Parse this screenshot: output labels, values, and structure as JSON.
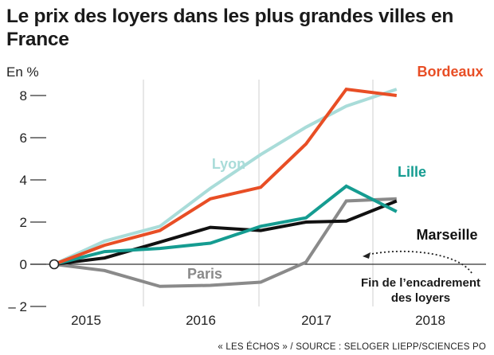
{
  "title": "Le prix des loyers dans les plus grandes villes en France",
  "source": "« LES ÉCHOS » / SOURCE : SELOGER LIEPP/SCIENCES PO",
  "chart_data": {
    "type": "line",
    "title": "Le prix des loyers dans les plus grandes villes en France",
    "ylabel": "En %",
    "xlabel": "",
    "ylim": [
      -2,
      8
    ],
    "y_ticks": [
      8,
      6,
      4,
      2,
      0,
      -2
    ],
    "y_tick_labels": [
      "8",
      "6",
      "4",
      "2",
      "0",
      "– 2"
    ],
    "xlim": [
      2014.7,
      2018.75
    ],
    "x_tick_labels": [
      "2015",
      "2016",
      "2017",
      "2018"
    ],
    "x_tick_values": [
      2015.15,
      2016.15,
      2017.15,
      2018.15
    ],
    "grid": "vertical",
    "origin_marker": [
      2014.7,
      0
    ],
    "series": [
      {
        "name": "Bordeaux",
        "color": "#e84e25",
        "x": [
          2014.7,
          2015.2,
          2015.75,
          2016.25,
          2016.75,
          2017.2,
          2017.6,
          2018.1
        ],
        "y": [
          0,
          0.9,
          1.6,
          3.1,
          3.65,
          5.7,
          8.3,
          8.0
        ]
      },
      {
        "name": "Lyon",
        "color": "#a9dcd9",
        "x": [
          2014.7,
          2015.2,
          2015.75,
          2016.25,
          2016.75,
          2017.2,
          2017.6,
          2018.1
        ],
        "y": [
          0,
          1.1,
          1.8,
          3.6,
          5.2,
          6.5,
          7.5,
          8.3
        ]
      },
      {
        "name": "Lille",
        "color": "#159c91",
        "x": [
          2014.7,
          2015.2,
          2015.75,
          2016.25,
          2016.75,
          2017.2,
          2017.6,
          2018.1
        ],
        "y": [
          0,
          0.6,
          0.75,
          1.0,
          1.8,
          2.2,
          3.7,
          2.5
        ]
      },
      {
        "name": "Marseille",
        "color": "#111111",
        "x": [
          2014.7,
          2015.2,
          2015.75,
          2016.25,
          2016.75,
          2017.2,
          2017.6,
          2018.1
        ],
        "y": [
          0,
          0.3,
          1.05,
          1.75,
          1.6,
          2.0,
          2.05,
          3.0
        ]
      },
      {
        "name": "Paris",
        "color": "#8a8a8a",
        "x": [
          2014.7,
          2015.2,
          2015.75,
          2016.25,
          2016.75,
          2017.2,
          2017.6,
          2018.1
        ],
        "y": [
          0,
          -0.3,
          -1.05,
          -1.0,
          -0.85,
          0.1,
          3.0,
          3.1
        ]
      }
    ],
    "annotation": {
      "lines": [
        "Fin de l’encadrement",
        "des loyers"
      ],
      "points_to": [
        2017.35,
        0.45
      ]
    }
  }
}
